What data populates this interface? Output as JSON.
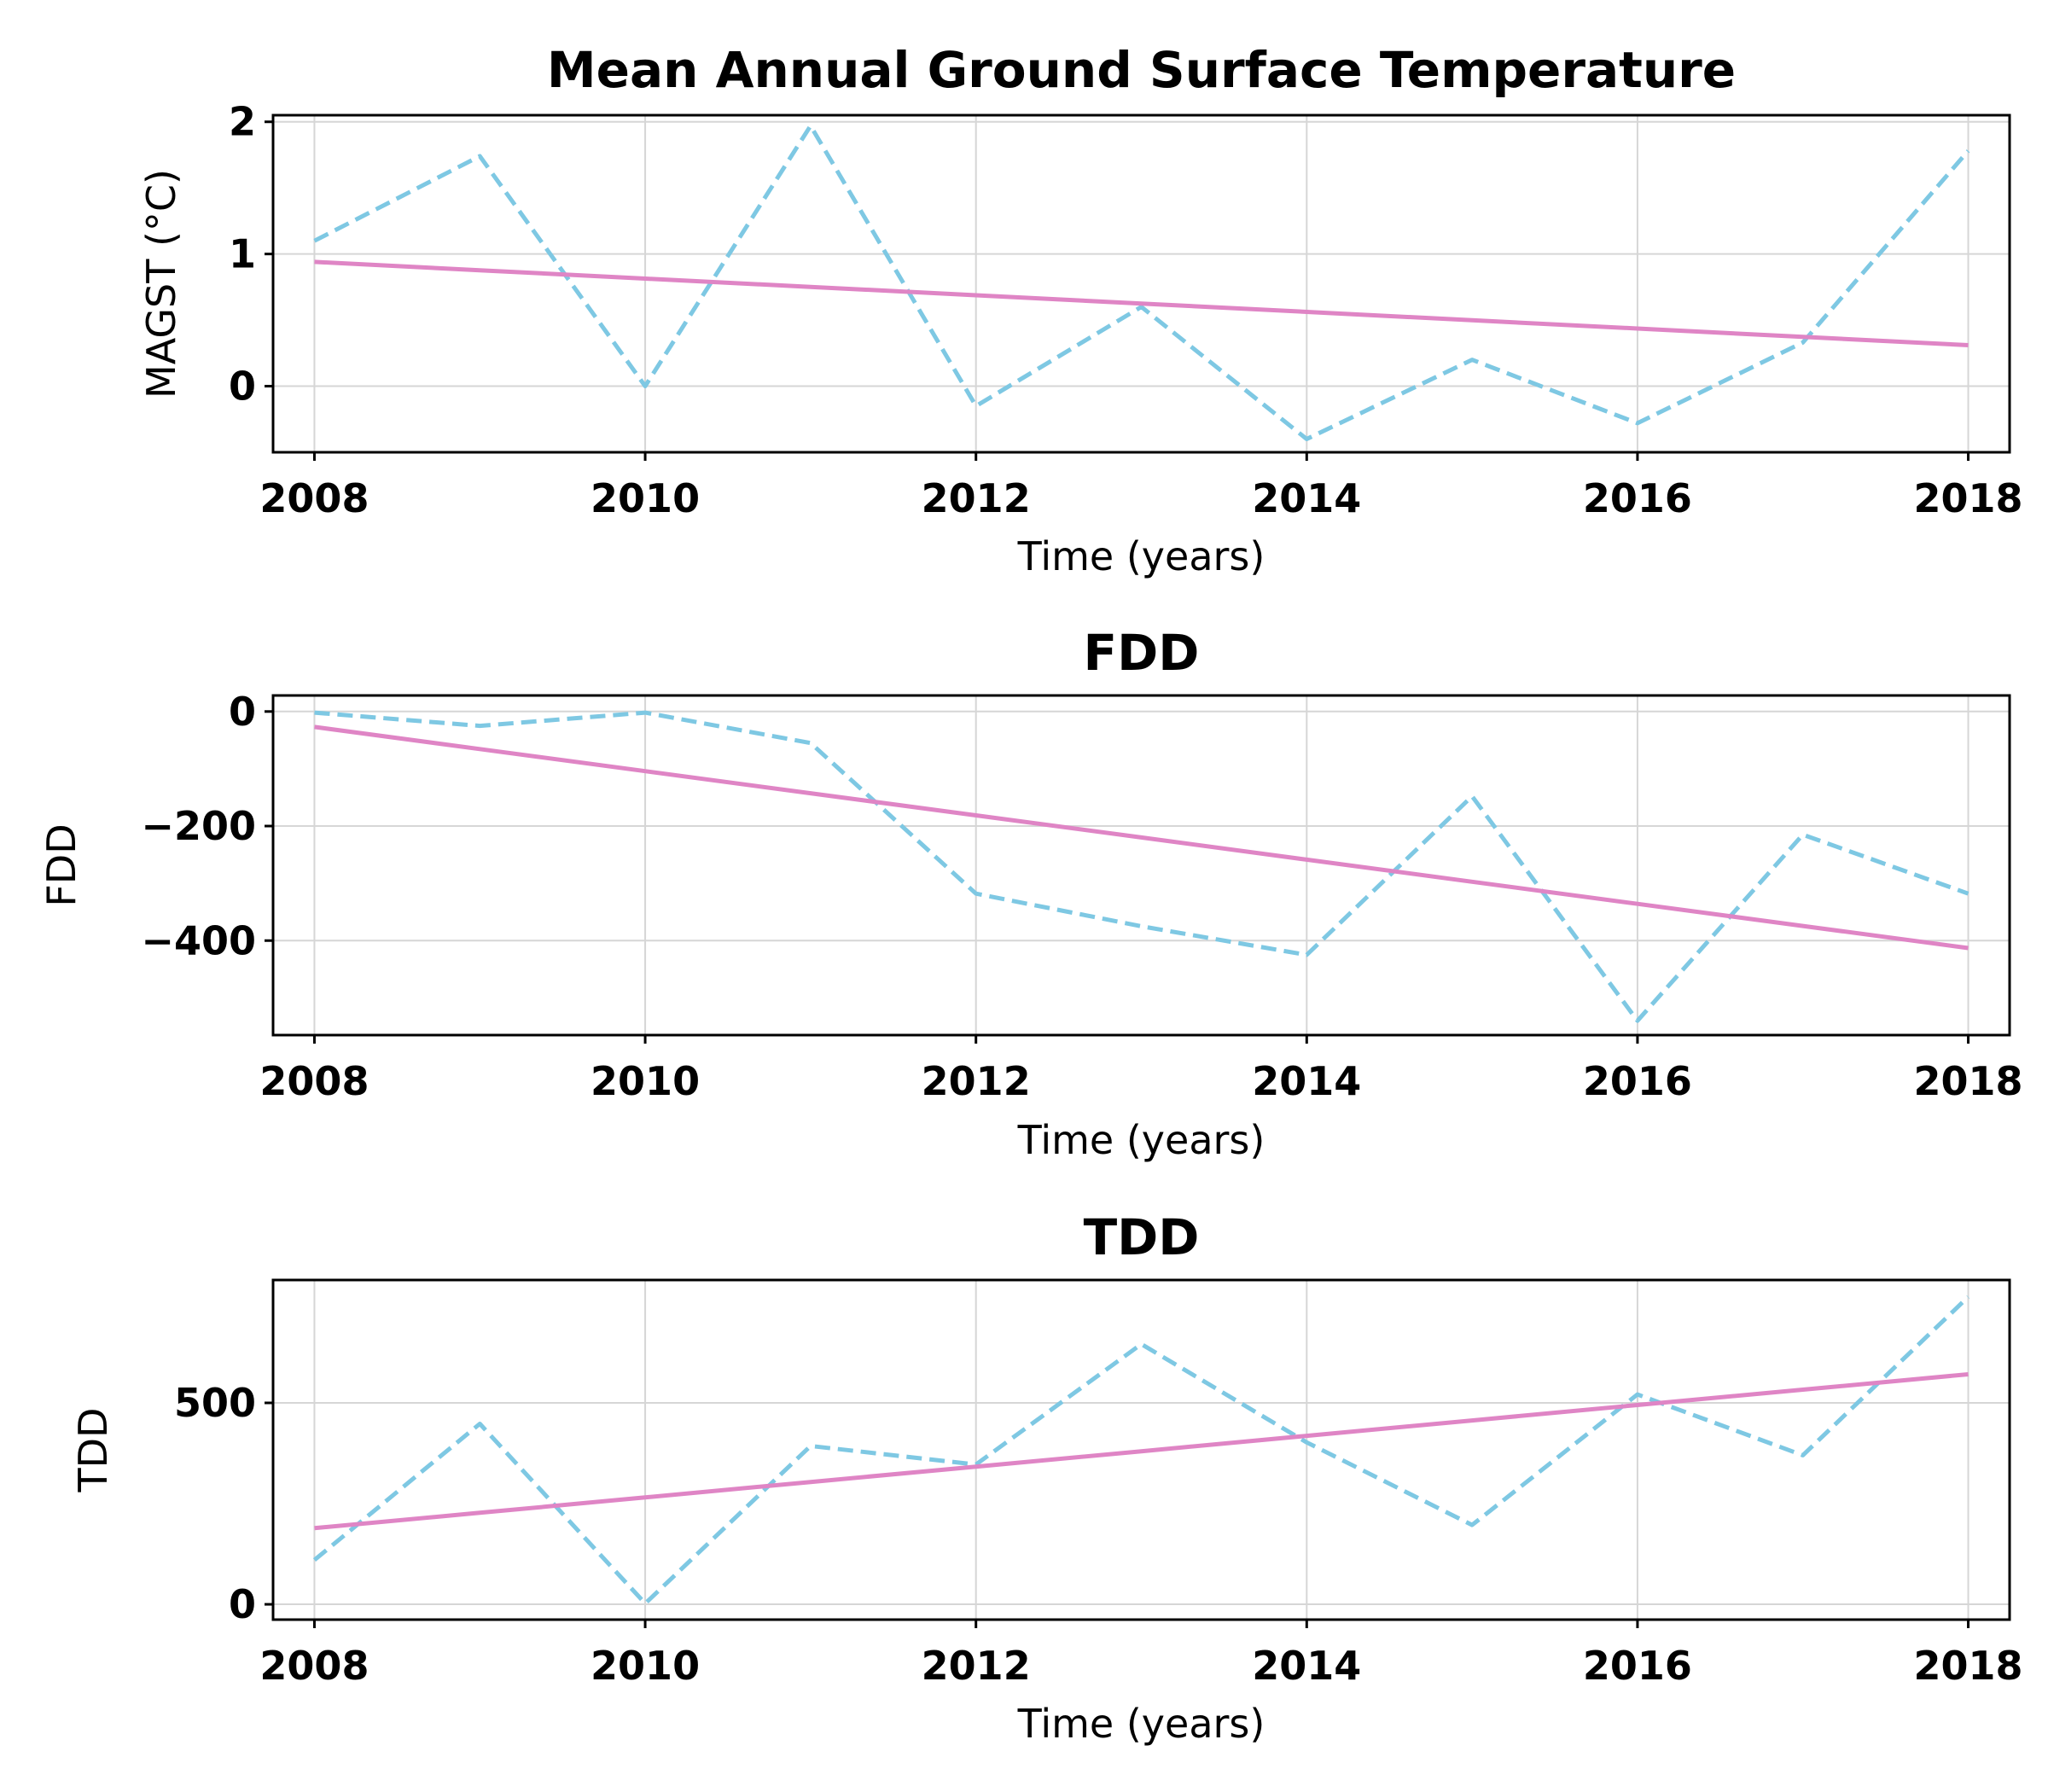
{
  "chart_data": [
    {
      "type": "line",
      "title": "Mean Annual Ground Surface Temperature",
      "xlabel": "Time (years)",
      "ylabel": "MAGST (°C)",
      "x": [
        2008,
        2009,
        2010,
        2011,
        2012,
        2013,
        2014,
        2015,
        2016,
        2017,
        2018
      ],
      "xticks": [
        "2008",
        "2010",
        "2012",
        "2014",
        "2016",
        "2018"
      ],
      "xlim": [
        2007.75,
        2018.25
      ],
      "yticks": [
        0,
        1,
        2
      ],
      "ytick_labels": [
        "0",
        "1",
        "2"
      ],
      "ylim": [
        -0.5,
        2.05
      ],
      "grid": true,
      "series": [
        {
          "style": "dashed",
          "color": "#7ec8e3",
          "values": [
            1.1,
            1.74,
            0.0,
            1.97,
            -0.15,
            0.6,
            -0.4,
            0.2,
            -0.28,
            0.33,
            1.78
          ]
        },
        {
          "style": "solid",
          "color": "#df85c5",
          "values": [
            0.94,
            0.877,
            0.814,
            0.751,
            0.688,
            0.625,
            0.562,
            0.499,
            0.436,
            0.373,
            0.31
          ]
        }
      ]
    },
    {
      "type": "line",
      "title": "FDD",
      "xlabel": "Time (years)",
      "ylabel": "FDD",
      "x": [
        2008,
        2009,
        2010,
        2011,
        2012,
        2013,
        2014,
        2015,
        2016,
        2017,
        2018
      ],
      "xticks": [
        "2008",
        "2010",
        "2012",
        "2014",
        "2016",
        "2018"
      ],
      "xlim": [
        2007.75,
        2018.25
      ],
      "yticks": [
        0,
        -200,
        -400
      ],
      "ytick_labels": [
        "0",
        "−200",
        "−400"
      ],
      "ylim": [
        -565,
        28
      ],
      "grid": true,
      "series": [
        {
          "style": "dashed",
          "color": "#7ec8e3",
          "values": [
            -2,
            -25,
            -2,
            -55,
            -318,
            -375,
            -425,
            -148,
            -540,
            -215,
            -318
          ]
        },
        {
          "style": "solid",
          "color": "#df85c5",
          "values": [
            -27,
            -65.6,
            -104.2,
            -142.8,
            -181.4,
            -220,
            -258.6,
            -297.2,
            -335.8,
            -374.4,
            -413
          ]
        }
      ]
    },
    {
      "type": "line",
      "title": "TDD",
      "xlabel": "Time (years)",
      "ylabel": "TDD",
      "x": [
        2008,
        2009,
        2010,
        2011,
        2012,
        2013,
        2014,
        2015,
        2016,
        2017,
        2018
      ],
      "xticks": [
        "2008",
        "2010",
        "2012",
        "2014",
        "2016",
        "2018"
      ],
      "xlim": [
        2007.75,
        2018.25
      ],
      "yticks": [
        0,
        500
      ],
      "ytick_labels": [
        "0",
        "500"
      ],
      "ylim": [
        -38,
        805
      ],
      "grid": true,
      "series": [
        {
          "style": "dashed",
          "color": "#7ec8e3",
          "values": [
            110,
            448,
            2,
            393,
            347,
            646,
            402,
            197,
            521,
            370,
            763
          ]
        },
        {
          "style": "solid",
          "color": "#df85c5",
          "values": [
            189,
            227.2,
            265.4,
            303.6,
            341.8,
            380,
            418.2,
            456.4,
            494.6,
            532.8,
            571
          ]
        }
      ]
    }
  ]
}
